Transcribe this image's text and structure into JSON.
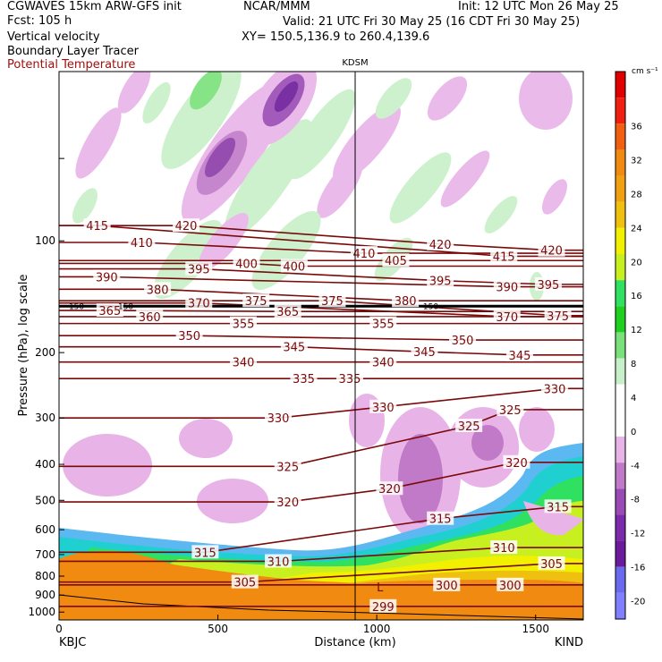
{
  "header": {
    "model": "CGWAVES 15km ARW-GFS init",
    "fcst": "Fcst:  105 h",
    "field1": "Vertical velocity",
    "field2": "Boundary Layer Tracer",
    "field3": "Potential Temperature",
    "org": "NCAR/MMM",
    "init": "Init: 12 UTC Mon 26 May 25",
    "valid": "Valid: 21 UTC Fri 30 May 25 (16 CDT Fri 30 May 25)",
    "xy": "XY= 150.5,136.9 to 260.4,139.6"
  },
  "colors": {
    "theta": "#7a0a0a",
    "terrain": "#f08a10",
    "colorbar": [
      "#8080ff",
      "#6a6aee",
      "#6a1a9a",
      "#7a2aaa",
      "#9a4ab4",
      "#c07ac8",
      "#e8b4e8",
      "#ffffff",
      "#ffffff",
      "#c8f0c8",
      "#7ae07a",
      "#20d020",
      "#30e060",
      "#c8f020",
      "#f0f000",
      "#f0c010",
      "#f0a010",
      "#f08a10",
      "#f06010",
      "#f02010",
      "#e00000"
    ]
  },
  "chart_data": {
    "type": "contour",
    "station_marker": "KDSM",
    "xlabel": "Distance (km)",
    "ylabel": "Pressure (hPa), log scale",
    "x_ticks": [
      0,
      500,
      1000,
      1500
    ],
    "x_endpoints": [
      "KBJC",
      "KIND"
    ],
    "xlim": [
      0,
      1650
    ],
    "y_ticks": [
      100,
      200,
      300,
      400,
      500,
      600,
      700,
      800,
      900,
      1000
    ],
    "ylim": [
      1050,
      35
    ],
    "colorbar": {
      "units": "cm s⁻¹",
      "ticks": [
        36,
        32,
        28,
        24,
        20,
        16,
        12,
        8,
        4,
        0,
        -4,
        -8,
        -12,
        -16,
        -20
      ]
    },
    "theta_contours": [
      {
        "value": 299,
        "x": 1020,
        "y": 965
      },
      {
        "value": 300,
        "x": 1220,
        "y": 845
      },
      {
        "value": 300,
        "x": 1420,
        "y": 845
      },
      {
        "value": 305,
        "x": 585,
        "y": 830
      },
      {
        "value": 305,
        "x": 1550,
        "y": 740
      },
      {
        "value": 310,
        "x": 690,
        "y": 730
      },
      {
        "value": 310,
        "x": 1400,
        "y": 670
      },
      {
        "value": 315,
        "x": 460,
        "y": 690
      },
      {
        "value": 315,
        "x": 1200,
        "y": 560
      },
      {
        "value": 315,
        "x": 1570,
        "y": 520
      },
      {
        "value": 320,
        "x": 720,
        "y": 505
      },
      {
        "value": 320,
        "x": 1040,
        "y": 465
      },
      {
        "value": 320,
        "x": 1440,
        "y": 395
      },
      {
        "value": 325,
        "x": 720,
        "y": 405
      },
      {
        "value": 325,
        "x": 1290,
        "y": 315
      },
      {
        "value": 325,
        "x": 1420,
        "y": 285
      },
      {
        "value": 330,
        "x": 690,
        "y": 300
      },
      {
        "value": 330,
        "x": 1020,
        "y": 280
      },
      {
        "value": 330,
        "x": 1560,
        "y": 250
      },
      {
        "value": 335,
        "x": 770,
        "y": 235
      },
      {
        "value": 335,
        "x": 915,
        "y": 235
      },
      {
        "value": 340,
        "x": 580,
        "y": 212
      },
      {
        "value": 340,
        "x": 1020,
        "y": 212
      },
      {
        "value": 345,
        "x": 740,
        "y": 193
      },
      {
        "value": 345,
        "x": 1150,
        "y": 199
      },
      {
        "value": 345,
        "x": 1450,
        "y": 203
      },
      {
        "value": 350,
        "x": 410,
        "y": 180
      },
      {
        "value": 350,
        "x": 1270,
        "y": 185
      },
      {
        "value": 355,
        "x": 580,
        "y": 167
      },
      {
        "value": 355,
        "x": 1020,
        "y": 167
      },
      {
        "value": 360,
        "x": 285,
        "y": 160
      },
      {
        "value": 365,
        "x": 160,
        "y": 154
      },
      {
        "value": 365,
        "x": 720,
        "y": 155
      },
      {
        "value": 370,
        "x": 440,
        "y": 147
      },
      {
        "value": 370,
        "x": 1410,
        "y": 160
      },
      {
        "value": 375,
        "x": 620,
        "y": 145
      },
      {
        "value": 375,
        "x": 860,
        "y": 145
      },
      {
        "value": 375,
        "x": 1570,
        "y": 159
      },
      {
        "value": 380,
        "x": 310,
        "y": 135
      },
      {
        "value": 380,
        "x": 1090,
        "y": 145
      },
      {
        "value": 390,
        "x": 150,
        "y": 125
      },
      {
        "value": 390,
        "x": 1410,
        "y": 133
      },
      {
        "value": 395,
        "x": 440,
        "y": 119
      },
      {
        "value": 395,
        "x": 1200,
        "y": 128
      },
      {
        "value": 395,
        "x": 1540,
        "y": 131
      },
      {
        "value": 400,
        "x": 590,
        "y": 115
      },
      {
        "value": 400,
        "x": 740,
        "y": 117
      },
      {
        "value": 405,
        "x": 1060,
        "y": 113
      },
      {
        "value": 410,
        "x": 260,
        "y": 101
      },
      {
        "value": 410,
        "x": 960,
        "y": 108
      },
      {
        "value": 415,
        "x": 120,
        "y": 91
      },
      {
        "value": 415,
        "x": 1400,
        "y": 110
      },
      {
        "value": 420,
        "x": 400,
        "y": 91
      },
      {
        "value": 420,
        "x": 1200,
        "y": 102
      },
      {
        "value": 420,
        "x": 1550,
        "y": 106
      }
    ],
    "tropopause_labels": [
      {
        "value": 150,
        "x": 55,
        "y": 150
      },
      {
        "value": 150,
        "x": 210,
        "y": 150
      },
      {
        "value": 150,
        "x": 1170,
        "y": 150
      }
    ],
    "terrain_low_label": {
      "text": "L",
      "x": 1010,
      "y": 880
    }
  }
}
